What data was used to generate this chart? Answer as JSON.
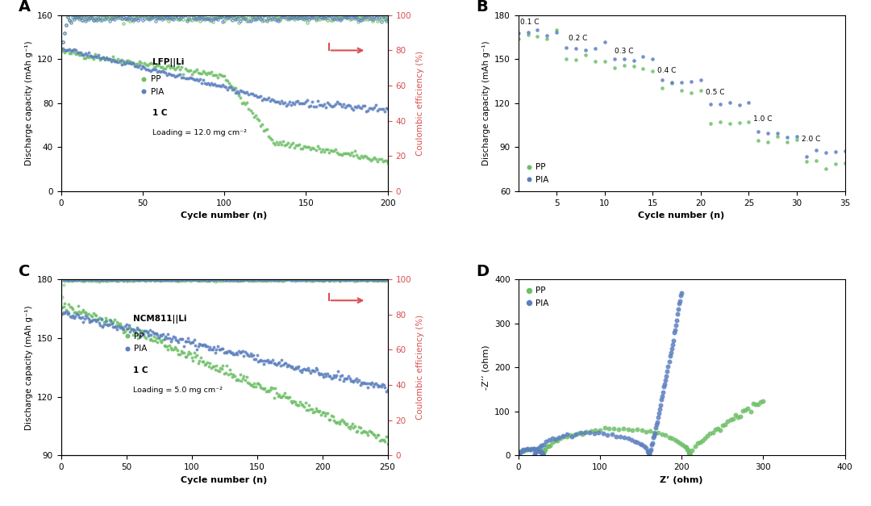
{
  "panel_A": {
    "title": "A",
    "xlabel": "Cycle number (n)",
    "ylabel": "Discharge capacity (mAh g⁻¹)",
    "ylabel2": "Coulombic efficiency (%)",
    "xlim": [
      0,
      200
    ],
    "ylim": [
      0,
      160
    ],
    "ylim2": [
      0,
      100
    ],
    "yticks": [
      0,
      40,
      80,
      120,
      160
    ],
    "yticks2": [
      0,
      20,
      40,
      60,
      80,
      100
    ],
    "xticks": [
      0,
      50,
      100,
      150,
      200
    ],
    "pp_color": "#6dbf67",
    "pia_color": "#5b7fbf",
    "ce_color": "#d94f4f"
  },
  "panel_B": {
    "title": "B",
    "xlabel": "Cycle number (n)",
    "ylabel": "Discharge capacity (mAh g⁻¹)",
    "xlim": [
      1,
      35
    ],
    "ylim": [
      60,
      180
    ],
    "yticks": [
      60,
      90,
      120,
      150,
      180
    ],
    "xticks": [
      5,
      10,
      15,
      20,
      25,
      30,
      35
    ],
    "c_rates": [
      "0.1 C",
      "0.2 C",
      "0.3 C",
      "0.4 C",
      "0.5 C",
      "1.0 C",
      "2.0 C"
    ],
    "c_rate_positions": [
      [
        1.2,
        174
      ],
      [
        6.2,
        163
      ],
      [
        11.0,
        154
      ],
      [
        15.5,
        141
      ],
      [
        20.5,
        126
      ],
      [
        25.5,
        108
      ],
      [
        30.5,
        94
      ]
    ],
    "pp_color": "#6dbf67",
    "pia_color": "#5b7fbf"
  },
  "panel_C": {
    "title": "C",
    "xlabel": "Cycle number (n)",
    "ylabel": "Discharge capacity (mAh g⁻¹)",
    "ylabel2": "Coulombic efficiency (%)",
    "xlim": [
      0,
      250
    ],
    "ylim": [
      90,
      180
    ],
    "ylim2": [
      0,
      100
    ],
    "yticks": [
      90,
      120,
      150,
      180
    ],
    "yticks2": [
      0,
      20,
      40,
      60,
      80,
      100
    ],
    "xticks": [
      0,
      50,
      100,
      150,
      200,
      250
    ],
    "pp_color": "#6dbf67",
    "pia_color": "#5b7fbf",
    "ce_color": "#d94f4f"
  },
  "panel_D": {
    "title": "D",
    "xlabel": "Z’ (ohm)",
    "ylabel": "-Z’’ (ohm)",
    "xlim": [
      0,
      400
    ],
    "ylim": [
      0,
      400
    ],
    "xticks": [
      0,
      100,
      200,
      300,
      400
    ],
    "yticks": [
      0,
      100,
      200,
      300,
      400
    ],
    "pp_color": "#6dbf67",
    "pia_color": "#5b7fbf"
  }
}
